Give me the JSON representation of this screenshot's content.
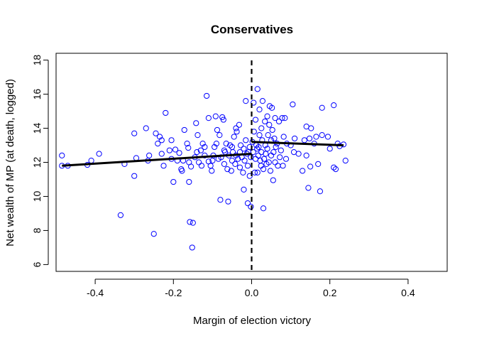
{
  "chart_data": {
    "type": "scatter",
    "title": "Conservatives",
    "xlabel": "Margin of election victory",
    "ylabel": "Net wealth of MP (at death, logged)",
    "xlim": [
      -0.5,
      0.5
    ],
    "ylim": [
      5.6,
      18.4
    ],
    "xticks": [
      -0.4,
      -0.2,
      0.0,
      0.2,
      0.4
    ],
    "xtick_labels": [
      "-0.4",
      "-0.2",
      "0.0",
      "0.2",
      "0.4"
    ],
    "yticks": [
      6,
      8,
      10,
      12,
      14,
      16,
      18
    ],
    "ytick_labels": [
      "6",
      "8",
      "10",
      "12",
      "14",
      "16",
      "18"
    ],
    "point_color": "#0000ff",
    "line_color": "#000000",
    "grid": false,
    "legend": "none",
    "cutoff_x": 0.0,
    "fit_left": [
      [
        -0.485,
        11.8
      ],
      [
        0.0,
        12.5
      ]
    ],
    "fit_right": [
      [
        0.0,
        13.2
      ],
      [
        0.235,
        13.0
      ]
    ],
    "points": [
      [
        -0.485,
        12.4
      ],
      [
        -0.485,
        11.8
      ],
      [
        -0.47,
        11.8
      ],
      [
        -0.42,
        11.85
      ],
      [
        -0.41,
        12.1
      ],
      [
        -0.39,
        12.5
      ],
      [
        -0.335,
        8.9
      ],
      [
        -0.325,
        11.9
      ],
      [
        -0.3,
        13.7
      ],
      [
        -0.3,
        11.2
      ],
      [
        -0.295,
        12.25
      ],
      [
        -0.27,
        14.0
      ],
      [
        -0.265,
        12.1
      ],
      [
        -0.262,
        12.4
      ],
      [
        -0.25,
        7.8
      ],
      [
        -0.245,
        13.7
      ],
      [
        -0.24,
        13.1
      ],
      [
        -0.235,
        13.5
      ],
      [
        -0.23,
        13.3
      ],
      [
        -0.23,
        12.5
      ],
      [
        -0.225,
        11.8
      ],
      [
        -0.22,
        14.9
      ],
      [
        -0.21,
        12.7
      ],
      [
        -0.205,
        13.3
      ],
      [
        -0.205,
        12.2
      ],
      [
        -0.2,
        10.85
      ],
      [
        -0.195,
        12.75
      ],
      [
        -0.19,
        12.1
      ],
      [
        -0.185,
        12.55
      ],
      [
        -0.18,
        11.6
      ],
      [
        -0.178,
        11.5
      ],
      [
        -0.175,
        12.1
      ],
      [
        -0.172,
        13.9
      ],
      [
        -0.165,
        13.1
      ],
      [
        -0.162,
        12.85
      ],
      [
        -0.16,
        12.0
      ],
      [
        -0.16,
        10.85
      ],
      [
        -0.158,
        8.5
      ],
      [
        -0.155,
        11.75
      ],
      [
        -0.152,
        7.0
      ],
      [
        -0.15,
        8.45
      ],
      [
        -0.145,
        12.3
      ],
      [
        -0.142,
        14.3
      ],
      [
        -0.14,
        12.6
      ],
      [
        -0.138,
        13.6
      ],
      [
        -0.135,
        12.0
      ],
      [
        -0.13,
        12.7
      ],
      [
        -0.128,
        11.8
      ],
      [
        -0.125,
        13.1
      ],
      [
        -0.12,
        12.4
      ],
      [
        -0.12,
        12.9
      ],
      [
        -0.115,
        15.9
      ],
      [
        -0.11,
        14.6
      ],
      [
        -0.11,
        12.05
      ],
      [
        -0.105,
        11.8
      ],
      [
        -0.102,
        11.5
      ],
      [
        -0.1,
        12.1
      ],
      [
        -0.098,
        12.4
      ],
      [
        -0.095,
        12.9
      ],
      [
        -0.092,
        14.7
      ],
      [
        -0.09,
        13.1
      ],
      [
        -0.088,
        13.9
      ],
      [
        -0.085,
        12.2
      ],
      [
        -0.082,
        13.6
      ],
      [
        -0.08,
        9.8
      ],
      [
        -0.078,
        12.3
      ],
      [
        -0.075,
        14.65
      ],
      [
        -0.072,
        14.5
      ],
      [
        -0.07,
        12.7
      ],
      [
        -0.07,
        11.9
      ],
      [
        -0.068,
        12.6
      ],
      [
        -0.065,
        13.1
      ],
      [
        -0.062,
        11.6
      ],
      [
        -0.06,
        9.7
      ],
      [
        -0.058,
        12.4
      ],
      [
        -0.055,
        13.0
      ],
      [
        -0.052,
        11.5
      ],
      [
        -0.05,
        12.1
      ],
      [
        -0.05,
        12.9
      ],
      [
        -0.048,
        12.6
      ],
      [
        -0.045,
        13.5
      ],
      [
        -0.042,
        11.9
      ],
      [
        -0.04,
        14.0
      ],
      [
        -0.04,
        12.4
      ],
      [
        -0.038,
        13.8
      ],
      [
        -0.035,
        12.2
      ],
      [
        -0.032,
        14.2
      ],
      [
        -0.03,
        12.6
      ],
      [
        -0.03,
        11.7
      ],
      [
        -0.028,
        13.0
      ],
      [
        -0.025,
        12.3
      ],
      [
        -0.022,
        11.4
      ],
      [
        -0.02,
        10.4
      ],
      [
        -0.02,
        12.8
      ],
      [
        -0.018,
        12.1
      ],
      [
        -0.015,
        15.6
      ],
      [
        -0.015,
        13.3
      ],
      [
        -0.012,
        12.5
      ],
      [
        -0.01,
        11.8
      ],
      [
        -0.01,
        9.6
      ],
      [
        -0.008,
        12.6
      ],
      [
        -0.005,
        12.9
      ],
      [
        -0.005,
        11.2
      ],
      [
        -0.002,
        12.3
      ],
      [
        -0.002,
        9.4
      ],
      [
        0.002,
        13.2
      ],
      [
        0.004,
        12.6
      ],
      [
        0.005,
        15.5
      ],
      [
        0.006,
        13.8
      ],
      [
        0.008,
        11.4
      ],
      [
        0.01,
        14.5
      ],
      [
        0.01,
        12.2
      ],
      [
        0.012,
        13.0
      ],
      [
        0.014,
        12.8
      ],
      [
        0.015,
        16.3
      ],
      [
        0.015,
        11.4
      ],
      [
        0.017,
        12.4
      ],
      [
        0.018,
        12.9
      ],
      [
        0.02,
        15.1
      ],
      [
        0.02,
        13.6
      ],
      [
        0.022,
        12.1
      ],
      [
        0.024,
        11.8
      ],
      [
        0.025,
        14.0
      ],
      [
        0.025,
        12.6
      ],
      [
        0.027,
        13.3
      ],
      [
        0.028,
        15.6
      ],
      [
        0.03,
        11.6
      ],
      [
        0.03,
        9.3
      ],
      [
        0.032,
        12.2
      ],
      [
        0.034,
        14.4
      ],
      [
        0.035,
        13.0
      ],
      [
        0.036,
        12.5
      ],
      [
        0.038,
        11.9
      ],
      [
        0.04,
        14.7
      ],
      [
        0.04,
        12.8
      ],
      [
        0.042,
        13.6
      ],
      [
        0.044,
        12.0
      ],
      [
        0.045,
        14.2
      ],
      [
        0.046,
        15.3
      ],
      [
        0.048,
        11.5
      ],
      [
        0.05,
        13.3
      ],
      [
        0.05,
        12.4
      ],
      [
        0.052,
        15.2
      ],
      [
        0.053,
        13.9
      ],
      [
        0.055,
        10.95
      ],
      [
        0.056,
        12.6
      ],
      [
        0.058,
        13.4
      ],
      [
        0.06,
        12.0
      ],
      [
        0.06,
        14.6
      ],
      [
        0.062,
        12.9
      ],
      [
        0.065,
        13.1
      ],
      [
        0.067,
        11.8
      ],
      [
        0.07,
        14.4
      ],
      [
        0.072,
        12.3
      ],
      [
        0.075,
        12.7
      ],
      [
        0.078,
        14.6
      ],
      [
        0.08,
        11.8
      ],
      [
        0.082,
        13.5
      ],
      [
        0.085,
        14.6
      ],
      [
        0.088,
        12.2
      ],
      [
        0.09,
        13.1
      ],
      [
        0.1,
        13.0
      ],
      [
        0.105,
        15.4
      ],
      [
        0.108,
        12.6
      ],
      [
        0.11,
        13.4
      ],
      [
        0.12,
        12.5
      ],
      [
        0.13,
        11.5
      ],
      [
        0.135,
        13.3
      ],
      [
        0.14,
        14.1
      ],
      [
        0.14,
        12.4
      ],
      [
        0.145,
        10.5
      ],
      [
        0.148,
        13.4
      ],
      [
        0.15,
        11.75
      ],
      [
        0.152,
        14.0
      ],
      [
        0.16,
        13.1
      ],
      [
        0.165,
        13.5
      ],
      [
        0.17,
        11.9
      ],
      [
        0.175,
        10.3
      ],
      [
        0.18,
        13.6
      ],
      [
        0.18,
        15.2
      ],
      [
        0.195,
        13.5
      ],
      [
        0.2,
        12.8
      ],
      [
        0.21,
        15.35
      ],
      [
        0.21,
        11.7
      ],
      [
        0.215,
        11.6
      ],
      [
        0.22,
        13.1
      ],
      [
        0.225,
        12.95
      ],
      [
        0.235,
        13.05
      ],
      [
        0.24,
        12.1
      ]
    ]
  }
}
